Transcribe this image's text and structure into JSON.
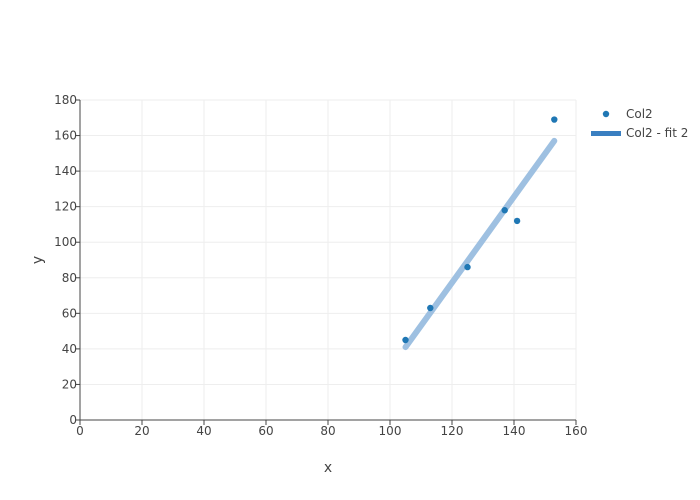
{
  "chart_data": {
    "type": "scatter",
    "xlabel": "x",
    "ylabel": "y",
    "xlim": [
      0,
      160
    ],
    "ylim": [
      0,
      180
    ],
    "x_ticks": [
      0,
      20,
      40,
      60,
      80,
      100,
      120,
      140,
      160
    ],
    "y_ticks": [
      0,
      20,
      40,
      60,
      80,
      100,
      120,
      140,
      160,
      180
    ],
    "grid": true,
    "legend_position": "top-right",
    "series": [
      {
        "name": "Col2",
        "mode": "markers",
        "color": "#1f77b4",
        "points": [
          {
            "x": 105,
            "y": 45
          },
          {
            "x": 113,
            "y": 63
          },
          {
            "x": 125,
            "y": 86
          },
          {
            "x": 137,
            "y": 118
          },
          {
            "x": 141,
            "y": 112
          },
          {
            "x": 153,
            "y": 169
          }
        ]
      },
      {
        "name": "Col2 - fit 2",
        "mode": "lines",
        "color": "#9ec0e1",
        "legend_color": "#3a7fc1",
        "points": [
          {
            "x": 105,
            "y": 41
          },
          {
            "x": 153,
            "y": 157
          }
        ]
      }
    ]
  }
}
